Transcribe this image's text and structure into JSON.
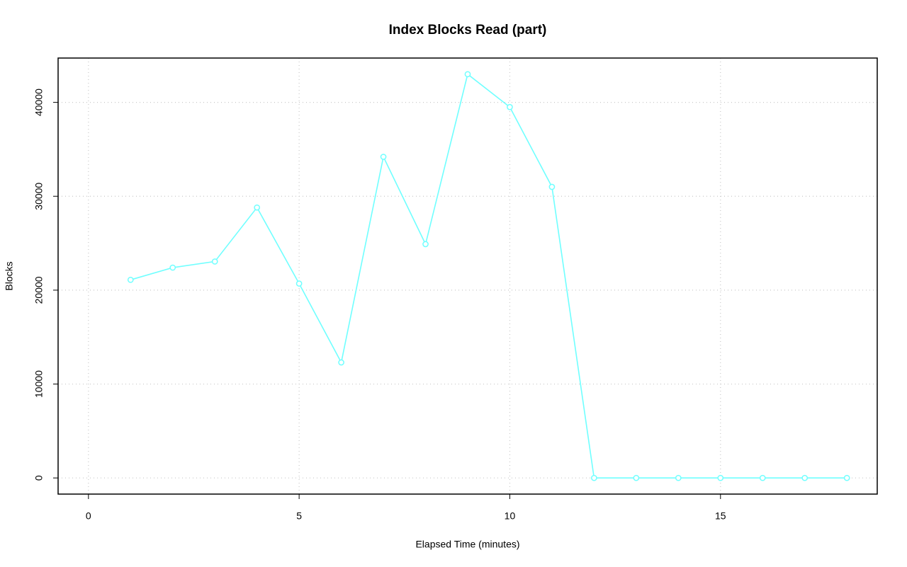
{
  "chart_data": {
    "type": "line",
    "title": "Index Blocks Read (part)",
    "x_label": "Elapsed Time (minutes)",
    "y_label": "Blocks",
    "x": [
      1,
      2,
      3,
      4,
      5,
      6,
      7,
      8,
      9,
      10,
      11,
      12,
      13,
      14,
      15,
      16,
      17,
      18
    ],
    "series": [
      {
        "name": "Index Blocks Read",
        "color": "#70ffff",
        "values": [
          21100,
          22400,
          23050,
          28800,
          20700,
          12300,
          34200,
          24900,
          43000,
          39500,
          31000,
          0,
          0,
          0,
          0,
          0,
          0,
          0
        ]
      }
    ],
    "xlim": [
      -0.72,
      18.72
    ],
    "ylim": [
      -1720,
      44720
    ],
    "xticks": [
      0,
      5,
      10,
      15
    ],
    "yticks": [
      0,
      10000,
      20000,
      30000,
      40000
    ],
    "grid": true
  }
}
